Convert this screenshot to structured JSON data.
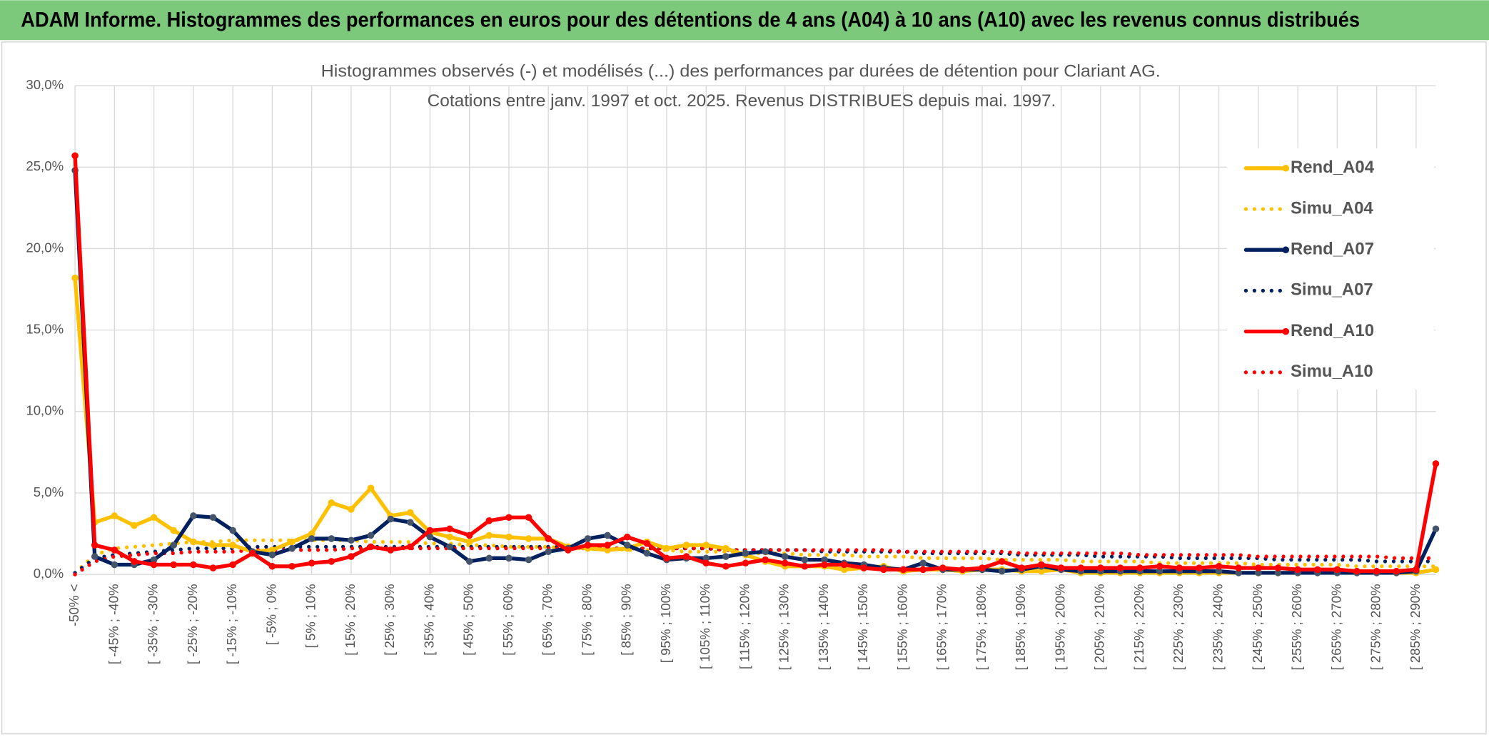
{
  "header": {
    "title": "ADAM Informe. Histogrammes des performances en euros pour des détentions de 4 ans (A04) à 10 ans (A10) avec les revenus connus distribués"
  },
  "chart_data": {
    "type": "line",
    "title": "Histogrammes observés (-) et modélisés (...) des performances par durées de détention pour Clariant AG.",
    "subtitle": "Cotations entre janv. 1997 et oct. 2025. Revenus DISTRIBUES depuis mai. 1997.",
    "categories": [
      "-50% <",
      null,
      "[ -45% ; -40%",
      null,
      "[ -35% ; -30%",
      null,
      "[ -25% ; -20%",
      null,
      "[ -15% ; -10%",
      null,
      "[ -5% ; 0%",
      null,
      "[ 5% ; 10%",
      null,
      "[ 15% ; 20%",
      null,
      "[ 25% ; 30%",
      null,
      "[ 35% ; 40%",
      null,
      "[ 45% ; 50%",
      null,
      "[ 55% ; 60%",
      null,
      "[ 65% ; 70%",
      null,
      "[ 75% ; 80%",
      null,
      "[ 85% ; 90%",
      null,
      "[ 95% ; 100%",
      null,
      "[ 105% ; 110%",
      null,
      "[ 115% ; 120%",
      null,
      "[ 125% ; 130%",
      null,
      "[ 135% ; 140%",
      null,
      "[ 145% ; 150%",
      null,
      "[ 155% ; 160%",
      null,
      "[ 165% ; 170%",
      null,
      "[ 175% ; 180%",
      null,
      "[ 185% ; 190%",
      null,
      "[ 195% ; 200%",
      null,
      "[ 205% ; 210%",
      null,
      "[ 215% ; 220%",
      null,
      "[ 225% ; 230%",
      null,
      "[ 235% ; 240%",
      null,
      "[ 245% ; 250%",
      null,
      "[ 255% ; 260%",
      null,
      "[ 265% ; 270%",
      null,
      "[ 275% ; 280%",
      null,
      "[ 285% ; 290%",
      null
    ],
    "ylim": [
      0,
      30
    ],
    "yticks": [
      {
        "value": 0,
        "label": "0,0%"
      },
      {
        "value": 5,
        "label": "5,0%"
      },
      {
        "value": 10,
        "label": "10,0%"
      },
      {
        "value": 15,
        "label": "15,0%"
      },
      {
        "value": 20,
        "label": "20,0%"
      },
      {
        "value": 25,
        "label": "25,0%"
      },
      {
        "value": 30,
        "label": "30,0%"
      }
    ],
    "grid": true,
    "legend": "right",
    "series": [
      {
        "name": "Rend_A04",
        "color": "#ffc000",
        "line_style": "solid",
        "markers": true,
        "values": [
          18.2,
          3.2,
          3.6,
          3.0,
          3.5,
          2.7,
          2.0,
          1.8,
          1.8,
          1.4,
          1.5,
          2.0,
          2.5,
          4.4,
          4.0,
          5.3,
          3.6,
          3.8,
          2.6,
          2.3,
          2.0,
          2.4,
          2.3,
          2.2,
          2.2,
          1.7,
          1.6,
          1.5,
          1.6,
          2.0,
          1.6,
          1.8,
          1.8,
          1.6,
          1.2,
          0.8,
          0.5,
          0.5,
          0.5,
          0.3,
          0.4,
          0.5,
          0.2,
          0.3,
          0.3,
          0.2,
          0.3,
          0.3,
          0.2,
          0.2,
          0.3,
          0.1,
          0.1,
          0.1,
          0.1,
          0.1,
          0.1,
          0.1,
          0.1,
          0.1,
          0.1,
          0.1,
          0.1,
          0.1,
          0.1,
          0.1,
          0.1,
          0.1,
          0.1,
          0.3
        ]
      },
      {
        "name": "Simu_A04",
        "color": "#ffc000",
        "line_style": "dotted",
        "markers": false,
        "values": [
          0.1,
          1.2,
          1.6,
          1.7,
          1.8,
          1.9,
          2.0,
          2.0,
          2.1,
          2.1,
          2.1,
          2.1,
          2.1,
          2.1,
          2.1,
          2.0,
          2.0,
          2.0,
          1.9,
          1.9,
          1.8,
          1.8,
          1.7,
          1.7,
          1.7,
          1.6,
          1.6,
          1.6,
          1.5,
          1.5,
          1.5,
          1.4,
          1.4,
          1.4,
          1.3,
          1.3,
          1.3,
          1.2,
          1.2,
          1.2,
          1.1,
          1.1,
          1.1,
          1.0,
          1.0,
          1.0,
          1.0,
          0.9,
          0.9,
          0.9,
          0.9,
          0.8,
          0.8,
          0.8,
          0.8,
          0.7,
          0.7,
          0.7,
          0.7,
          0.7,
          0.6,
          0.6,
          0.6,
          0.6,
          0.6,
          0.5,
          0.5,
          0.5,
          0.5,
          0.5
        ]
      },
      {
        "name": "Rend_A07",
        "color": "#002060",
        "line_style": "solid",
        "markers": true,
        "values": [
          24.8,
          1.1,
          0.6,
          0.6,
          0.9,
          1.8,
          3.6,
          3.5,
          2.7,
          1.4,
          1.2,
          1.6,
          2.2,
          2.2,
          2.1,
          2.4,
          3.4,
          3.2,
          2.3,
          1.7,
          0.8,
          1.0,
          1.0,
          0.9,
          1.4,
          1.6,
          2.2,
          2.4,
          1.8,
          1.3,
          0.9,
          1.0,
          1.0,
          1.1,
          1.3,
          1.4,
          1.1,
          0.9,
          0.9,
          0.7,
          0.6,
          0.4,
          0.3,
          0.7,
          0.3,
          0.3,
          0.3,
          0.2,
          0.3,
          0.5,
          0.3,
          0.2,
          0.2,
          0.2,
          0.2,
          0.2,
          0.2,
          0.2,
          0.2,
          0.1,
          0.1,
          0.1,
          0.1,
          0.1,
          0.1,
          0.1,
          0.1,
          0.1,
          0.2,
          2.8
        ]
      },
      {
        "name": "Simu_A07",
        "color": "#002060",
        "line_style": "dotted",
        "markers": false,
        "values": [
          0.1,
          1.0,
          1.2,
          1.3,
          1.4,
          1.5,
          1.6,
          1.6,
          1.6,
          1.7,
          1.7,
          1.7,
          1.7,
          1.7,
          1.7,
          1.7,
          1.7,
          1.7,
          1.7,
          1.7,
          1.7,
          1.7,
          1.7,
          1.7,
          1.7,
          1.7,
          1.7,
          1.6,
          1.6,
          1.6,
          1.6,
          1.6,
          1.6,
          1.5,
          1.5,
          1.5,
          1.5,
          1.5,
          1.4,
          1.4,
          1.4,
          1.4,
          1.4,
          1.3,
          1.3,
          1.3,
          1.3,
          1.3,
          1.2,
          1.2,
          1.2,
          1.2,
          1.1,
          1.1,
          1.1,
          1.1,
          1.0,
          1.0,
          1.0,
          1.0,
          1.0,
          0.9,
          0.9,
          0.9,
          0.9,
          0.9,
          0.8,
          0.8,
          0.8,
          0.8
        ]
      },
      {
        "name": "Rend_A10",
        "color": "#ff0000",
        "line_style": "solid",
        "markers": true,
        "values": [
          25.7,
          1.8,
          1.5,
          0.8,
          0.6,
          0.6,
          0.6,
          0.4,
          0.6,
          1.3,
          0.5,
          0.5,
          0.7,
          0.8,
          1.1,
          1.7,
          1.5,
          1.7,
          2.7,
          2.8,
          2.4,
          3.3,
          3.5,
          3.5,
          2.2,
          1.5,
          1.8,
          1.8,
          2.3,
          1.9,
          1.0,
          1.1,
          0.7,
          0.5,
          0.7,
          0.9,
          0.7,
          0.5,
          0.6,
          0.6,
          0.4,
          0.3,
          0.3,
          0.3,
          0.4,
          0.3,
          0.4,
          0.8,
          0.4,
          0.6,
          0.4,
          0.4,
          0.4,
          0.4,
          0.4,
          0.5,
          0.4,
          0.4,
          0.5,
          0.4,
          0.4,
          0.4,
          0.3,
          0.3,
          0.3,
          0.2,
          0.2,
          0.2,
          0.3,
          6.8
        ]
      },
      {
        "name": "Simu_A10",
        "color": "#ff0000",
        "line_style": "dotted",
        "markers": false,
        "values": [
          0.0,
          0.8,
          1.1,
          1.2,
          1.3,
          1.3,
          1.4,
          1.4,
          1.4,
          1.5,
          1.5,
          1.5,
          1.5,
          1.5,
          1.6,
          1.6,
          1.6,
          1.6,
          1.6,
          1.6,
          1.6,
          1.6,
          1.6,
          1.6,
          1.6,
          1.6,
          1.6,
          1.6,
          1.6,
          1.6,
          1.6,
          1.6,
          1.6,
          1.5,
          1.5,
          1.5,
          1.5,
          1.5,
          1.5,
          1.5,
          1.5,
          1.5,
          1.4,
          1.4,
          1.4,
          1.4,
          1.4,
          1.4,
          1.3,
          1.3,
          1.3,
          1.3,
          1.3,
          1.3,
          1.2,
          1.2,
          1.2,
          1.2,
          1.2,
          1.2,
          1.1,
          1.1,
          1.1,
          1.1,
          1.1,
          1.1,
          1.1,
          1.0,
          1.0,
          1.0
        ]
      }
    ]
  }
}
